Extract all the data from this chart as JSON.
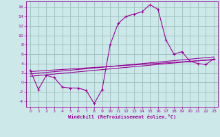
{
  "xlabel": "Windchill (Refroidissement éolien,°C)",
  "bg_color": "#cce8e8",
  "grid_color": "#9bbfbf",
  "line_color": "#990099",
  "xlim": [
    -0.5,
    23.5
  ],
  "ylim": [
    -5.2,
    17.2
  ],
  "yticks": [
    -4,
    -2,
    0,
    2,
    4,
    6,
    8,
    10,
    12,
    14,
    16
  ],
  "xticks": [
    0,
    1,
    2,
    3,
    4,
    5,
    6,
    7,
    8,
    9,
    10,
    11,
    12,
    13,
    14,
    15,
    16,
    17,
    18,
    19,
    20,
    21,
    22,
    23
  ],
  "main_x": [
    0,
    1,
    2,
    3,
    4,
    5,
    6,
    7,
    8,
    9,
    10,
    11,
    12,
    13,
    14,
    15,
    16,
    17,
    18,
    19,
    20,
    21,
    22,
    23
  ],
  "main_y": [
    2.5,
    -1.5,
    1.5,
    1.0,
    -1.0,
    -1.2,
    -1.2,
    -1.7,
    -4.5,
    -1.5,
    8.0,
    12.5,
    14.0,
    14.5,
    15.0,
    16.5,
    15.5,
    9.0,
    6.0,
    6.5,
    4.5,
    4.0,
    3.8,
    5.0
  ],
  "line1_x": [
    0,
    23
  ],
  "line1_y": [
    2.3,
    4.8
  ],
  "line2_x": [
    0,
    23
  ],
  "line2_y": [
    1.8,
    5.4
  ],
  "line3_x": [
    0,
    23
  ],
  "line3_y": [
    1.3,
    4.9
  ]
}
